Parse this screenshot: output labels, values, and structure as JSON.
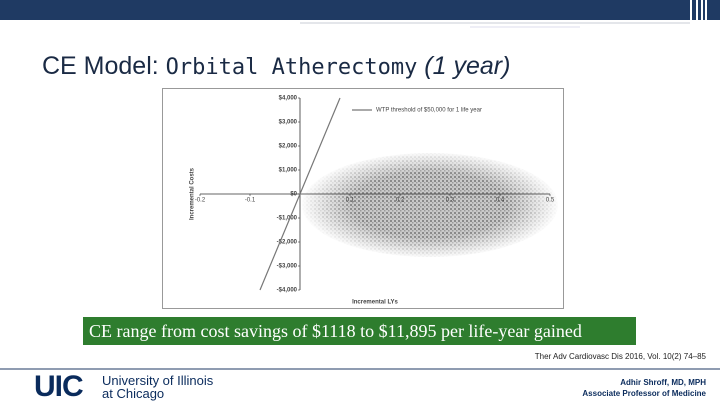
{
  "slide": {
    "title_lead": "CE Model:",
    "title_main": "Orbital Atherectomy",
    "title_italic": "(1 year)",
    "caption": "CE range from cost savings of $1118 to $11,895 per life-year gained",
    "citation": "Ther Adv Cardiovasc Dis 2016, Vol. 10(2) 74–85",
    "logo": "UIC",
    "university_line1": "University of Illinois",
    "university_line2": "at Chicago",
    "author": "Adhir Shroff, MD, MPH",
    "author_title": "Associate Professor of Medicine"
  },
  "chart_data": {
    "type": "scatter",
    "x_label": "Incremental LYs",
    "y_label": "Incremental Costs",
    "legend": "WTP threshold of $50,000 for 1 life year",
    "threshold": 50000,
    "xlim": [
      -0.2,
      0.5
    ],
    "ylim": [
      -4000,
      4000
    ],
    "xticks": [
      -0.2,
      -0.1,
      0.1,
      0.2,
      0.3,
      0.4,
      0.5
    ],
    "yticks": [
      {
        "value": 4000,
        "label": "$4,000"
      },
      {
        "value": 3000,
        "label": "$3,000"
      },
      {
        "value": 2000,
        "label": "$2,000"
      },
      {
        "value": 1000,
        "label": "$1,000"
      },
      {
        "value": 0,
        "label": "$0"
      },
      {
        "value": -1000,
        "label": "-$1,000"
      },
      {
        "value": -2000,
        "label": "-$2,000"
      },
      {
        "value": -3000,
        "label": "-$3,000"
      },
      {
        "value": -4000,
        "label": "-$4,000"
      }
    ]
  }
}
